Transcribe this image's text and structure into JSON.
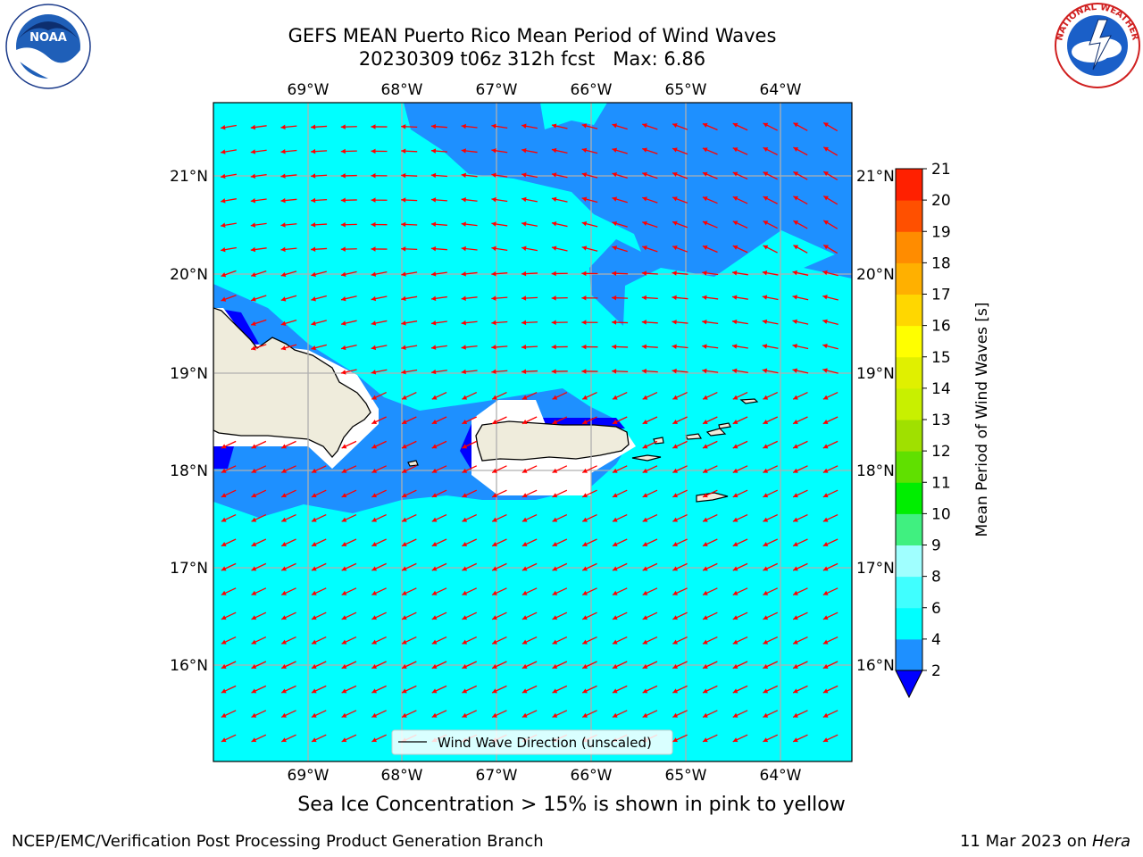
{
  "header": {
    "title_line1": "GEFS MEAN Puerto Rico Mean Period of Wind Waves",
    "title_line2": "20230309 t06z 312h fcst   Max: 6.86"
  },
  "logos": {
    "left": {
      "name": "NOAA",
      "arc_text": "NATIONAL OCEANIC AND ATMOSPHERIC ADMINISTRATION · U.S. DEPARTMENT OF COMMERCE"
    },
    "right": {
      "name": "NATIONAL WEATHER SERVICE"
    }
  },
  "map": {
    "lon_labels": [
      "69°W",
      "68°W",
      "67°W",
      "66°W",
      "65°W",
      "64°W"
    ],
    "lat_labels": [
      "21°N",
      "20°N",
      "19°N",
      "18°N",
      "17°N",
      "16°N"
    ],
    "legend_label": "Wind Wave Direction (unscaled)",
    "colors": {
      "ocean_main": "#00ffff",
      "ocean_low": "#1e90ff",
      "ocean_lowest": "#0000ff",
      "land": "#efecdc",
      "arrow": "#ff0000",
      "grid": "#b0b0b0"
    }
  },
  "colorbar": {
    "label": "Mean Period of Wind Waves [s]",
    "ticks": [
      "2",
      "4",
      "6",
      "8",
      "9",
      "10",
      "11",
      "12",
      "13",
      "14",
      "15",
      "16",
      "17",
      "18",
      "19",
      "20",
      "21"
    ],
    "colors": [
      "#1e90ff",
      "#00ffff",
      "#40ffff",
      "#a0ffff",
      "#40f080",
      "#00ee00",
      "#60e000",
      "#a0e000",
      "#c8f000",
      "#e0f000",
      "#ffff00",
      "#ffd700",
      "#ffb000",
      "#ff8c00",
      "#ff5000",
      "#ff2000"
    ],
    "under_color": "#0000ff"
  },
  "footer": {
    "caption": "Sea Ice Concentration > 15% is shown in pink to yellow",
    "left": "NCEP/EMC/Verification Post Processing Product Generation Branch",
    "right_date": "11 Mar 2023 on ",
    "right_machine": "Hera"
  }
}
